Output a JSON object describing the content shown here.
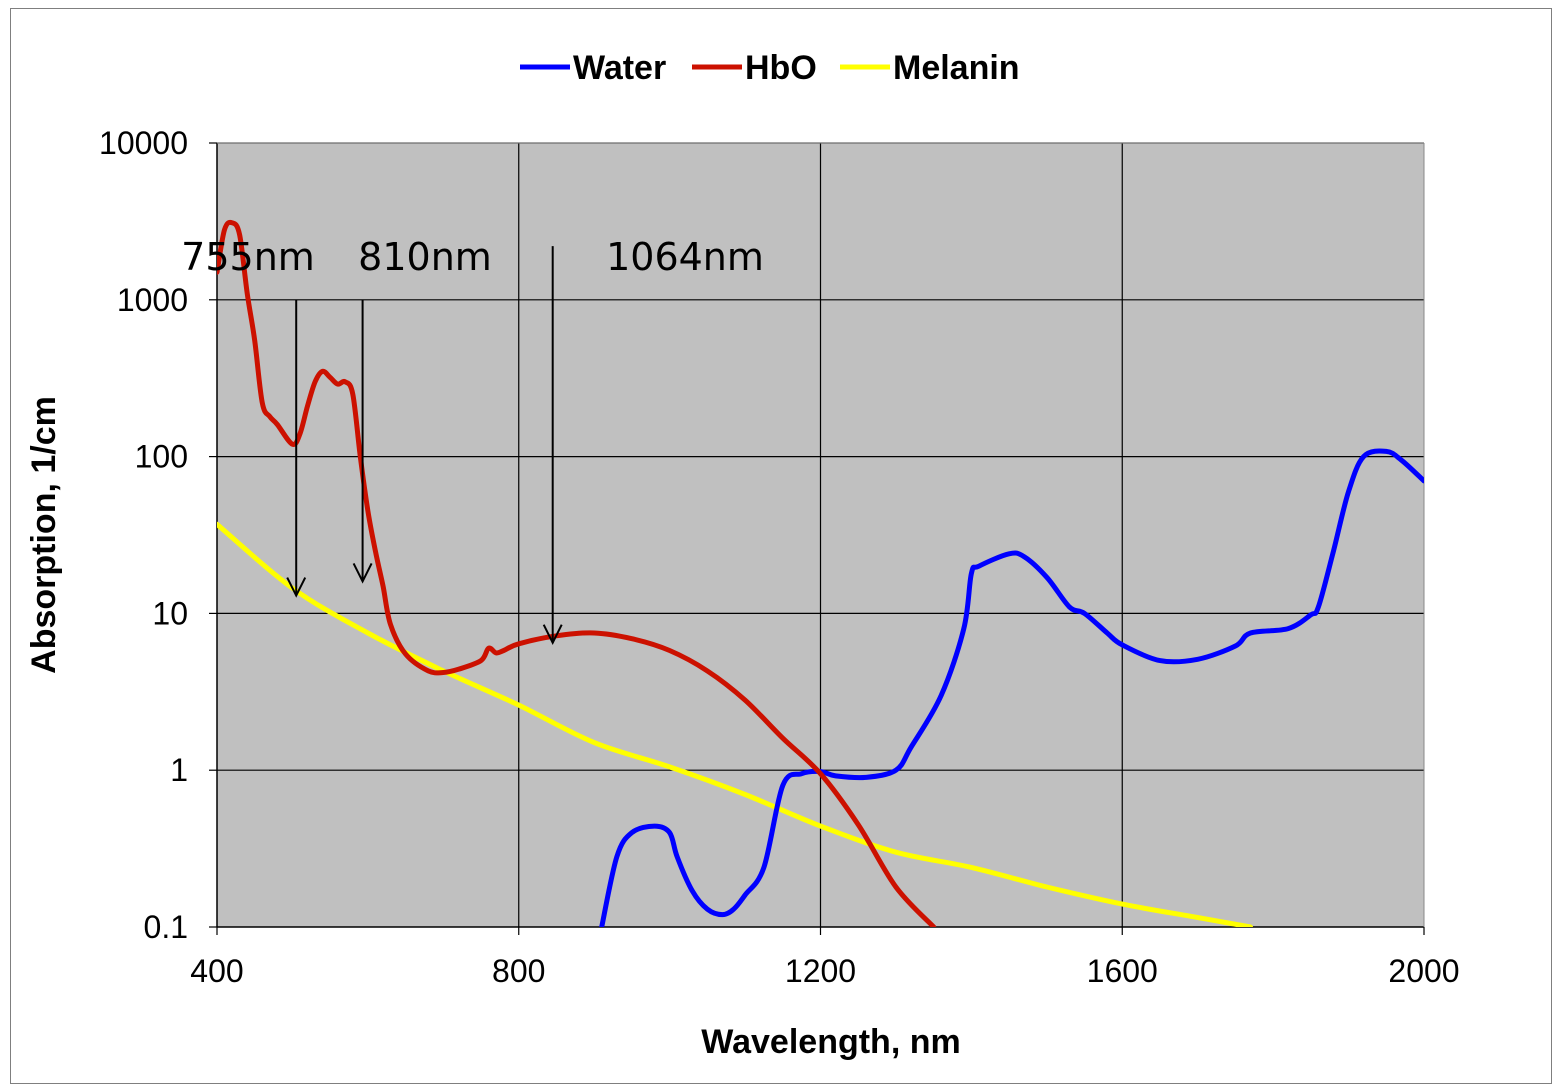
{
  "chart_data": {
    "type": "line",
    "title": "",
    "xlabel": "Wavelength, nm",
    "ylabel": "Absorption, 1/cm",
    "xlim": [
      400,
      2000
    ],
    "ylim": [
      0.1,
      10000
    ],
    "yscale": "log",
    "grid": true,
    "plot_background": "#c0c0c0",
    "legend_position": "top-center",
    "x_ticks": [
      "400",
      "800",
      "1200",
      "1600",
      "2000"
    ],
    "y_ticks": [
      "0.1",
      "1",
      "10",
      "100",
      "1000",
      "10000"
    ],
    "series": [
      {
        "name": "Water",
        "color": "#0000ff",
        "x": [
          910,
          930,
          950,
          980,
          1000,
          1010,
          1030,
          1050,
          1070,
          1085,
          1100,
          1125,
          1150,
          1175,
          1200,
          1220,
          1260,
          1300,
          1320,
          1360,
          1390,
          1400,
          1410,
          1450,
          1470,
          1500,
          1530,
          1550,
          1580,
          1600,
          1650,
          1700,
          1750,
          1770,
          1820,
          1850,
          1860,
          1880,
          1900,
          1920,
          1950,
          1970,
          2000
        ],
        "y": [
          0.1,
          0.28,
          0.4,
          0.44,
          0.4,
          0.28,
          0.17,
          0.13,
          0.12,
          0.13,
          0.16,
          0.24,
          0.8,
          0.95,
          0.98,
          0.92,
          0.9,
          1.0,
          1.4,
          3.0,
          8.0,
          18,
          20,
          24,
          23,
          17,
          11,
          10,
          7.5,
          6.3,
          5.0,
          5.1,
          6.2,
          7.5,
          8.0,
          9.8,
          11,
          25,
          60,
          100,
          108,
          95,
          70
        ]
      },
      {
        "name": "HbO",
        "color": "#cc1100",
        "x": [
          400,
          410,
          420,
          430,
          440,
          450,
          460,
          470,
          480,
          500,
          510,
          520,
          530,
          540,
          550,
          560,
          570,
          580,
          590,
          600,
          610,
          620,
          630,
          650,
          680,
          700,
          720,
          750,
          760,
          770,
          780,
          800,
          850,
          900,
          950,
          1000,
          1050,
          1100,
          1150,
          1200,
          1250,
          1300,
          1350
        ],
        "y": [
          1500,
          2800,
          3100,
          2600,
          1100,
          550,
          220,
          180,
          160,
          120,
          140,
          210,
          300,
          350,
          320,
          290,
          300,
          250,
          100,
          45,
          25,
          15,
          8.5,
          5.5,
          4.3,
          4.2,
          4.4,
          5.0,
          6.0,
          5.6,
          5.8,
          6.4,
          7.2,
          7.5,
          6.9,
          5.8,
          4.3,
          2.8,
          1.6,
          0.95,
          0.45,
          0.18,
          0.1
        ]
      },
      {
        "name": "Melanin",
        "color": "#ffff00",
        "x": [
          400,
          500,
          600,
          700,
          800,
          900,
          1000,
          1100,
          1200,
          1300,
          1400,
          1500,
          1600,
          1700,
          1770
        ],
        "y": [
          37,
          14.5,
          7.5,
          4.3,
          2.6,
          1.5,
          1.05,
          0.7,
          0.44,
          0.3,
          0.24,
          0.18,
          0.14,
          0.115,
          0.1
        ]
      }
    ],
    "annotations": [
      {
        "text": "755nm",
        "arrow_x": 505,
        "arrow_top_y": 1000,
        "arrow_tip_y": 13
      },
      {
        "text": "810nm",
        "arrow_x": 593,
        "arrow_top_y": 1000,
        "arrow_tip_y": 16
      },
      {
        "text": "1064nm",
        "arrow_x": 845,
        "arrow_top_y": 2200,
        "arrow_tip_y": 6.5
      }
    ]
  }
}
